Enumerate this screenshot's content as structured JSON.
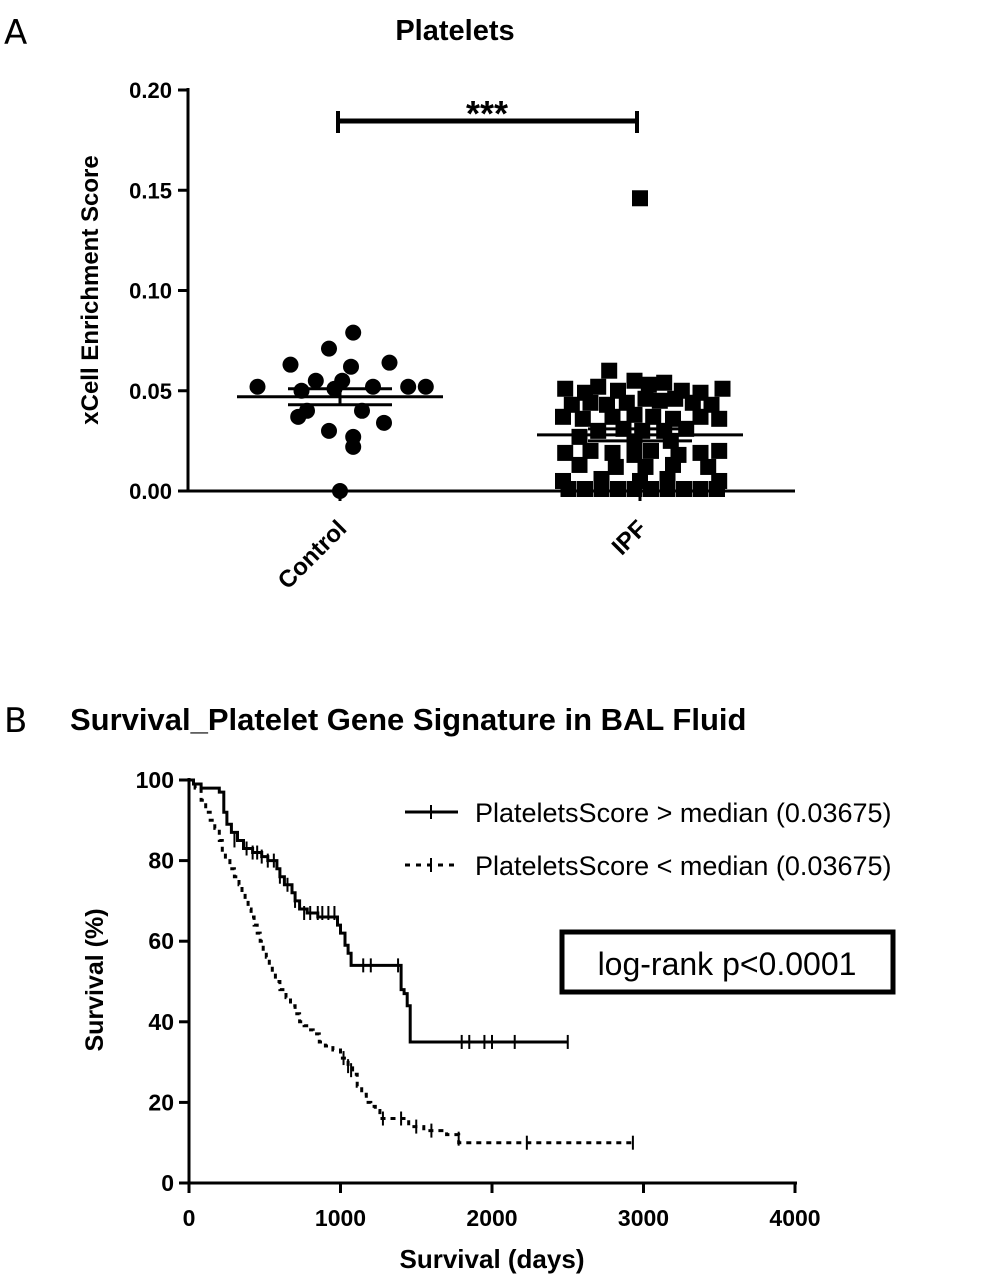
{
  "figure": {
    "panel_a_letter": "A",
    "panel_b_letter": "B"
  },
  "chart_data": [
    {
      "type": "scatter",
      "title": "Platelets",
      "xlabel": "",
      "ylabel": "xCell Enrichment Score",
      "categories": [
        "Control",
        "IPF"
      ],
      "ylim": [
        0,
        0.2
      ],
      "yticks": [
        "0.00",
        "0.05",
        "0.10",
        "0.15",
        "0.20"
      ],
      "significance": "***",
      "grid": false,
      "series": [
        {
          "category": "Control",
          "marker": "circle",
          "mean": 0.047,
          "sem_low": 0.043,
          "sem_high": 0.051,
          "points": [
            {
              "x": -0.75,
              "y": 0.052
            },
            {
              "x": -0.35,
              "y": 0.05
            },
            {
              "x": -0.05,
              "y": 0.051
            },
            {
              "x": 0.3,
              "y": 0.052
            },
            {
              "x": 0.62,
              "y": 0.052
            },
            {
              "x": 0.78,
              "y": 0.052
            },
            {
              "x": -0.45,
              "y": 0.063
            },
            {
              "x": 0.1,
              "y": 0.062
            },
            {
              "x": 0.45,
              "y": 0.064
            },
            {
              "x": -0.1,
              "y": 0.071
            },
            {
              "x": 0.12,
              "y": 0.079
            },
            {
              "x": -0.22,
              "y": 0.055
            },
            {
              "x": 0.02,
              "y": 0.055
            },
            {
              "x": -0.3,
              "y": 0.04
            },
            {
              "x": 0.2,
              "y": 0.04
            },
            {
              "x": -0.38,
              "y": 0.037
            },
            {
              "x": 0.4,
              "y": 0.034
            },
            {
              "x": -0.1,
              "y": 0.03
            },
            {
              "x": 0.12,
              "y": 0.027
            },
            {
              "x": 0.12,
              "y": 0.022
            },
            {
              "x": 0.0,
              "y": 0.0
            }
          ]
        },
        {
          "category": "IPF",
          "marker": "square",
          "mean": 0.028,
          "sem_low": 0.025,
          "sem_high": 0.031,
          "points": [
            {
              "x": 0.0,
              "y": 0.146
            },
            {
              "x": -0.28,
              "y": 0.06
            },
            {
              "x": -0.68,
              "y": 0.051
            },
            {
              "x": -0.5,
              "y": 0.049
            },
            {
              "x": -0.38,
              "y": 0.052
            },
            {
              "x": -0.2,
              "y": 0.05
            },
            {
              "x": -0.05,
              "y": 0.055
            },
            {
              "x": 0.08,
              "y": 0.053
            },
            {
              "x": 0.22,
              "y": 0.054
            },
            {
              "x": 0.38,
              "y": 0.05
            },
            {
              "x": 0.55,
              "y": 0.049
            },
            {
              "x": 0.75,
              "y": 0.051
            },
            {
              "x": -0.62,
              "y": 0.043
            },
            {
              "x": -0.45,
              "y": 0.044
            },
            {
              "x": -0.3,
              "y": 0.043
            },
            {
              "x": -0.12,
              "y": 0.044
            },
            {
              "x": 0.05,
              "y": 0.046
            },
            {
              "x": 0.18,
              "y": 0.045
            },
            {
              "x": 0.32,
              "y": 0.046
            },
            {
              "x": 0.48,
              "y": 0.044
            },
            {
              "x": 0.65,
              "y": 0.043
            },
            {
              "x": -0.7,
              "y": 0.037
            },
            {
              "x": -0.52,
              "y": 0.036
            },
            {
              "x": -0.25,
              "y": 0.037
            },
            {
              "x": -0.05,
              "y": 0.038
            },
            {
              "x": 0.12,
              "y": 0.037
            },
            {
              "x": 0.3,
              "y": 0.036
            },
            {
              "x": 0.55,
              "y": 0.037
            },
            {
              "x": 0.72,
              "y": 0.036
            },
            {
              "x": -0.38,
              "y": 0.03
            },
            {
              "x": -0.15,
              "y": 0.031
            },
            {
              "x": 0.02,
              "y": 0.03
            },
            {
              "x": 0.22,
              "y": 0.03
            },
            {
              "x": 0.42,
              "y": 0.031
            },
            {
              "x": -0.55,
              "y": 0.027
            },
            {
              "x": -0.05,
              "y": 0.024
            },
            {
              "x": 0.28,
              "y": 0.025
            },
            {
              "x": -0.68,
              "y": 0.019
            },
            {
              "x": -0.45,
              "y": 0.02
            },
            {
              "x": -0.25,
              "y": 0.019
            },
            {
              "x": -0.05,
              "y": 0.018
            },
            {
              "x": 0.1,
              "y": 0.02
            },
            {
              "x": 0.35,
              "y": 0.018
            },
            {
              "x": 0.55,
              "y": 0.019
            },
            {
              "x": 0.72,
              "y": 0.02
            },
            {
              "x": -0.55,
              "y": 0.013
            },
            {
              "x": -0.22,
              "y": 0.012
            },
            {
              "x": 0.05,
              "y": 0.012
            },
            {
              "x": 0.3,
              "y": 0.013
            },
            {
              "x": 0.62,
              "y": 0.012
            },
            {
              "x": -0.7,
              "y": 0.005
            },
            {
              "x": -0.35,
              "y": 0.006
            },
            {
              "x": 0.0,
              "y": 0.005
            },
            {
              "x": 0.25,
              "y": 0.006
            },
            {
              "x": 0.72,
              "y": 0.005
            },
            {
              "x": -0.65,
              "y": 0.001
            },
            {
              "x": -0.5,
              "y": 0.001
            },
            {
              "x": -0.35,
              "y": 0.001
            },
            {
              "x": -0.2,
              "y": 0.001
            },
            {
              "x": -0.05,
              "y": 0.001
            },
            {
              "x": 0.1,
              "y": 0.001
            },
            {
              "x": 0.25,
              "y": 0.001
            },
            {
              "x": 0.4,
              "y": 0.001
            },
            {
              "x": 0.55,
              "y": 0.001
            },
            {
              "x": 0.7,
              "y": 0.001
            }
          ]
        }
      ]
    },
    {
      "type": "line",
      "title": "Survival_Platelet Gene Signature in BAL Fluid",
      "xlabel": "Survival (days)",
      "ylabel": "Survival (%)",
      "xlim": [
        0,
        4000
      ],
      "ylim": [
        0,
        100
      ],
      "xticks": [
        0,
        1000,
        2000,
        3000,
        4000
      ],
      "yticks": [
        0,
        20,
        40,
        60,
        80,
        100
      ],
      "legend_position": "top-right",
      "annotation": "log-rank p<0.0001",
      "grid": false,
      "series": [
        {
          "name": "PlateletsScore > median (0.03675)",
          "style": "solid",
          "steps": [
            [
              0,
              100
            ],
            [
              30,
              99
            ],
            [
              80,
              98
            ],
            [
              200,
              97
            ],
            [
              230,
              92
            ],
            [
              250,
              89
            ],
            [
              280,
              87
            ],
            [
              320,
              85
            ],
            [
              360,
              83
            ],
            [
              420,
              82
            ],
            [
              480,
              81
            ],
            [
              520,
              80
            ],
            [
              580,
              78
            ],
            [
              600,
              76
            ],
            [
              630,
              74
            ],
            [
              680,
              72
            ],
            [
              700,
              70
            ],
            [
              730,
              68
            ],
            [
              780,
              67
            ],
            [
              850,
              66
            ],
            [
              950,
              66
            ],
            [
              980,
              64
            ],
            [
              1000,
              62
            ],
            [
              1030,
              59
            ],
            [
              1050,
              57
            ],
            [
              1070,
              54
            ],
            [
              1150,
              54
            ],
            [
              1250,
              54
            ],
            [
              1390,
              54
            ],
            [
              1400,
              48
            ],
            [
              1420,
              47
            ],
            [
              1440,
              44
            ],
            [
              1460,
              35
            ],
            [
              2500,
              35
            ]
          ],
          "censors": [
            [
              300,
              85
            ],
            [
              380,
              83
            ],
            [
              420,
              82
            ],
            [
              450,
              82
            ],
            [
              480,
              81
            ],
            [
              520,
              80
            ],
            [
              560,
              80
            ],
            [
              600,
              76
            ],
            [
              650,
              74
            ],
            [
              700,
              70
            ],
            [
              760,
              67
            ],
            [
              800,
              67
            ],
            [
              850,
              67
            ],
            [
              880,
              67
            ],
            [
              920,
              67
            ],
            [
              960,
              67
            ],
            [
              1150,
              54
            ],
            [
              1200,
              54
            ],
            [
              1380,
              54
            ],
            [
              1800,
              35
            ],
            [
              1850,
              35
            ],
            [
              1950,
              35
            ],
            [
              2000,
              35
            ],
            [
              2150,
              35
            ],
            [
              2500,
              35
            ]
          ]
        },
        {
          "name": "PlateletsScore < median (0.03675)",
          "style": "dashed",
          "steps": [
            [
              0,
              100
            ],
            [
              40,
              98
            ],
            [
              80,
              95
            ],
            [
              110,
              92
            ],
            [
              140,
              90
            ],
            [
              170,
              88
            ],
            [
              200,
              85
            ],
            [
              220,
              82
            ],
            [
              240,
              80
            ],
            [
              270,
              78
            ],
            [
              300,
              76
            ],
            [
              330,
              74
            ],
            [
              350,
              72
            ],
            [
              370,
              70
            ],
            [
              390,
              68
            ],
            [
              410,
              66
            ],
            [
              430,
              64
            ],
            [
              450,
              62
            ],
            [
              470,
              60
            ],
            [
              490,
              58
            ],
            [
              510,
              56
            ],
            [
              530,
              54
            ],
            [
              550,
              52
            ],
            [
              570,
              50
            ],
            [
              600,
              48
            ],
            [
              640,
              46
            ],
            [
              670,
              44
            ],
            [
              700,
              42
            ],
            [
              730,
              40
            ],
            [
              760,
              39
            ],
            [
              790,
              38
            ],
            [
              820,
              37
            ],
            [
              860,
              35
            ],
            [
              900,
              34
            ],
            [
              950,
              33
            ],
            [
              1000,
              31
            ],
            [
              1050,
              29
            ],
            [
              1080,
              27
            ],
            [
              1110,
              24
            ],
            [
              1140,
              22
            ],
            [
              1170,
              20
            ],
            [
              1200,
              19
            ],
            [
              1230,
              18
            ],
            [
              1260,
              16
            ],
            [
              1400,
              16
            ],
            [
              1450,
              14
            ],
            [
              1550,
              13
            ],
            [
              1650,
              13
            ],
            [
              1700,
              12
            ],
            [
              1780,
              10
            ],
            [
              2930,
              10
            ]
          ],
          "censors": [
            [
              1020,
              31
            ],
            [
              1050,
              29
            ],
            [
              1070,
              28
            ],
            [
              1280,
              16
            ],
            [
              1400,
              16
            ],
            [
              1500,
              14
            ],
            [
              1600,
              13
            ],
            [
              1780,
              11
            ],
            [
              2230,
              10
            ],
            [
              2930,
              10
            ]
          ]
        }
      ]
    }
  ]
}
